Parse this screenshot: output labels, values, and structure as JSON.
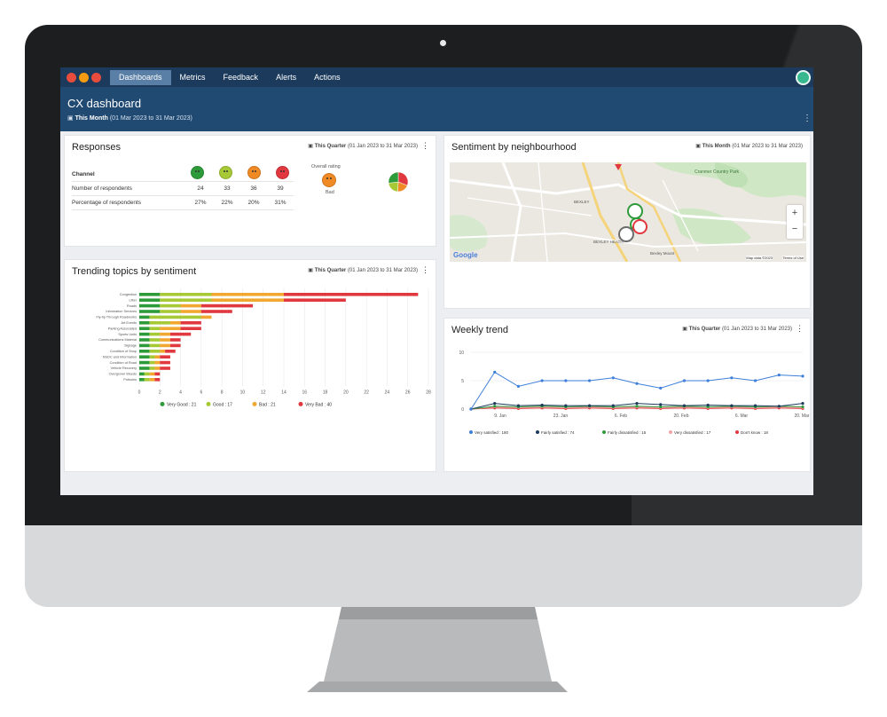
{
  "nav": {
    "window_dots": [
      "#e74c3c",
      "#f39c12",
      "#e74c3c"
    ],
    "tabs": [
      {
        "label": "Dashboards",
        "active": true
      },
      {
        "label": "Metrics",
        "active": false
      },
      {
        "label": "Feedback",
        "active": false
      },
      {
        "label": "Alerts",
        "active": false
      },
      {
        "label": "Actions",
        "active": false
      }
    ],
    "user_icon": "user-avatar-icon"
  },
  "header": {
    "title": "CX dashboard",
    "period_label": "This Month",
    "period_range": "(01 Mar 2023 to 31 Mar 2023)",
    "kebab": "⋮"
  },
  "responses": {
    "title": "Responses",
    "period_label": "This Quarter",
    "period_range": "(01 Jan 2023 to 31 Mar 2023)",
    "columns": [
      "Channel"
    ],
    "face_colors": [
      "#2e9b3a",
      "#a6c935",
      "#f08a24",
      "#e0383e"
    ],
    "rows": [
      {
        "label": "Number of respondents",
        "values": [
          "24",
          "33",
          "36",
          "39"
        ]
      },
      {
        "label": "Percentage of respondents",
        "values": [
          "27%",
          "22%",
          "20%",
          "31%"
        ]
      }
    ],
    "overall_label": "Overall rating",
    "overall_value": "Bad",
    "pie": [
      {
        "share": 0.31,
        "color": "#e0383e"
      },
      {
        "share": 0.2,
        "color": "#f08a24"
      },
      {
        "share": 0.22,
        "color": "#a6c935"
      },
      {
        "share": 0.27,
        "color": "#2e9b3a"
      }
    ]
  },
  "trending": {
    "title": "Trending topics by sentiment",
    "period_label": "This Quarter",
    "period_range": "(01 Jan 2023 to 31 Mar 2023)",
    "chart_data": {
      "type": "bar",
      "orientation": "horizontal",
      "stacked": true,
      "categories": [
        "Congestion",
        "Litter",
        "Roads",
        "Information Services",
        "Fly-tip Through Roadworks",
        "Art Events",
        "Parking Associated",
        "Sports Units",
        "Communications Material",
        "Signage",
        "Condition of Shop",
        "NSDC and Information",
        "Condition of Road",
        "Vehicle Recovery",
        "Overgrown Weeds",
        "Potholes"
      ],
      "series": [
        {
          "name": "Very Good",
          "color": "#2e9b3a",
          "values": [
            2,
            2,
            2,
            2,
            1,
            1,
            1,
            1,
            1,
            1,
            1,
            1,
            1,
            1,
            0.5,
            0.5
          ]
        },
        {
          "name": "Good",
          "color": "#a6c935",
          "values": [
            5,
            5,
            2,
            2,
            5,
            2,
            1,
            1,
            1,
            1,
            1,
            0.5,
            0.5,
            0.5,
            0.5,
            0.5
          ]
        },
        {
          "name": "Bad",
          "color": "#f0a830",
          "values": [
            7,
            7,
            2,
            2,
            1,
            1,
            2,
            1,
            1,
            1,
            0.5,
            0.5,
            0.5,
            0.5,
            0.5,
            0.5
          ]
        },
        {
          "name": "Very Bad",
          "color": "#e0383e",
          "values": [
            13,
            6,
            5,
            3,
            0,
            2,
            2,
            2,
            1,
            1,
            1,
            1,
            1,
            1,
            0.5,
            0.5
          ]
        }
      ],
      "legend_values": [
        "21",
        "17",
        "21",
        "40"
      ],
      "xlim": [
        0,
        28
      ],
      "xticks": [
        "0",
        "2",
        "4",
        "6",
        "8",
        "10",
        "12",
        "14",
        "16",
        "18",
        "20",
        "22",
        "24",
        "26",
        "28"
      ],
      "grid": true,
      "legend": "bottom"
    }
  },
  "sentiment_map": {
    "title": "Sentiment by neighbourhood",
    "period_label": "This Month",
    "period_range": "(01 Mar 2023 to 31 Mar 2023)",
    "places": [
      "Cranmer Country Park",
      "BEXLEY",
      "BEXLEY HEATH",
      "Bexley Mount"
    ],
    "zoom_in": "+",
    "zoom_out": "−",
    "attribution": "Map data ©2023",
    "terms": "Terms of Use",
    "logo": "Google"
  },
  "weekly": {
    "title": "Weekly trend",
    "period_label": "This Quarter",
    "period_range": "(01 Jan 2023 to 31 Mar 2023)",
    "chart_data": {
      "type": "line",
      "y_ticks": [
        "10",
        "5",
        "0"
      ],
      "ylim": [
        0,
        10
      ],
      "x_ticks": [
        "9. Jan",
        "23. Jan",
        "6. Feb",
        "20. Feb",
        "6. Mar",
        "20. Mar"
      ],
      "series": [
        {
          "name": "Very satisfied",
          "legend_value": "180",
          "color": "#3d7fd9",
          "values": [
            0,
            6.5,
            4,
            5,
            5,
            5,
            5.5,
            4.5,
            3.7,
            5,
            5,
            5.5,
            5,
            6,
            5.8
          ]
        },
        {
          "name": "Fairly satisfied",
          "legend_value": "74",
          "color": "#1b3a5c",
          "values": [
            0,
            1,
            0.6,
            0.7,
            0.6,
            0.6,
            0.6,
            1,
            0.8,
            0.6,
            0.7,
            0.6,
            0.6,
            0.5,
            1
          ]
        },
        {
          "name": "Fairly dissatisfied",
          "legend_value": "15",
          "color": "#2e9b3a",
          "values": [
            0,
            0.5,
            0.4,
            0.5,
            0.4,
            0.5,
            0.4,
            0.5,
            0.4,
            0.5,
            0.4,
            0.5,
            0.4,
            0.5,
            0.4
          ]
        },
        {
          "name": "Very dissatisfied",
          "legend_value": "17",
          "color": "#f3a3a7",
          "values": [
            0,
            0.4,
            0.3,
            0.4,
            0.3,
            0.4,
            0.3,
            0.4,
            0.3,
            0.4,
            0.3,
            0.4,
            0.3,
            0.4,
            0.3
          ]
        },
        {
          "name": "Don't know",
          "legend_value": "18",
          "color": "#e0383e",
          "values": [
            0,
            0.2,
            0.1,
            0.2,
            0.1,
            0.2,
            0.1,
            0.2,
            0.1,
            0.2,
            0.1,
            0.2,
            0.1,
            0.2,
            0.1
          ]
        }
      ],
      "grid": true,
      "legend": "bottom"
    }
  }
}
